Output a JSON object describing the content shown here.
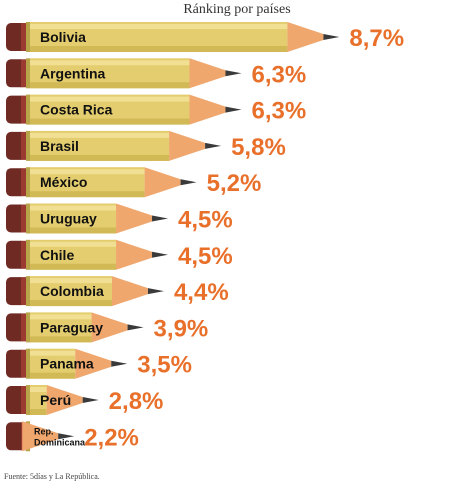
{
  "title": "Ránking por países",
  "source": "Fuente: 5días y La República.",
  "chart_data": {
    "type": "bar",
    "title": "Ránking por países",
    "categories": [
      "Bolivia",
      "Argentina",
      "Costa Rica",
      "Brasil",
      "México",
      "Uruguay",
      "Chile",
      "Colombia",
      "Paraguay",
      "Panama",
      "Perú",
      "Rep. Dominicana"
    ],
    "values": [
      8.7,
      6.3,
      6.3,
      5.8,
      5.2,
      4.5,
      4.5,
      4.4,
      3.9,
      3.5,
      2.8,
      2.2
    ],
    "value_labels": [
      "8,7%",
      "6,3%",
      "6,3%",
      "5,8%",
      "5,2%",
      "4,5%",
      "4,5%",
      "4,4%",
      "3,9%",
      "3,5%",
      "2,8%",
      "2,2%"
    ],
    "unit": "%",
    "orientation": "horizontal",
    "grid": false,
    "legend": "none",
    "colors": {
      "pencil_body": "#e3cd6e",
      "pencil_stripe": "#f4e59c",
      "pencil_shadow": "#c9b04a",
      "eraser": "#6e2a23",
      "eraser_band": "#9a3a30",
      "ferrule": "#b8a54a",
      "wood": "#f0a76e",
      "graphite": "#3a3a3a",
      "label_text": "#111111",
      "value_text": "#e8702a"
    }
  }
}
